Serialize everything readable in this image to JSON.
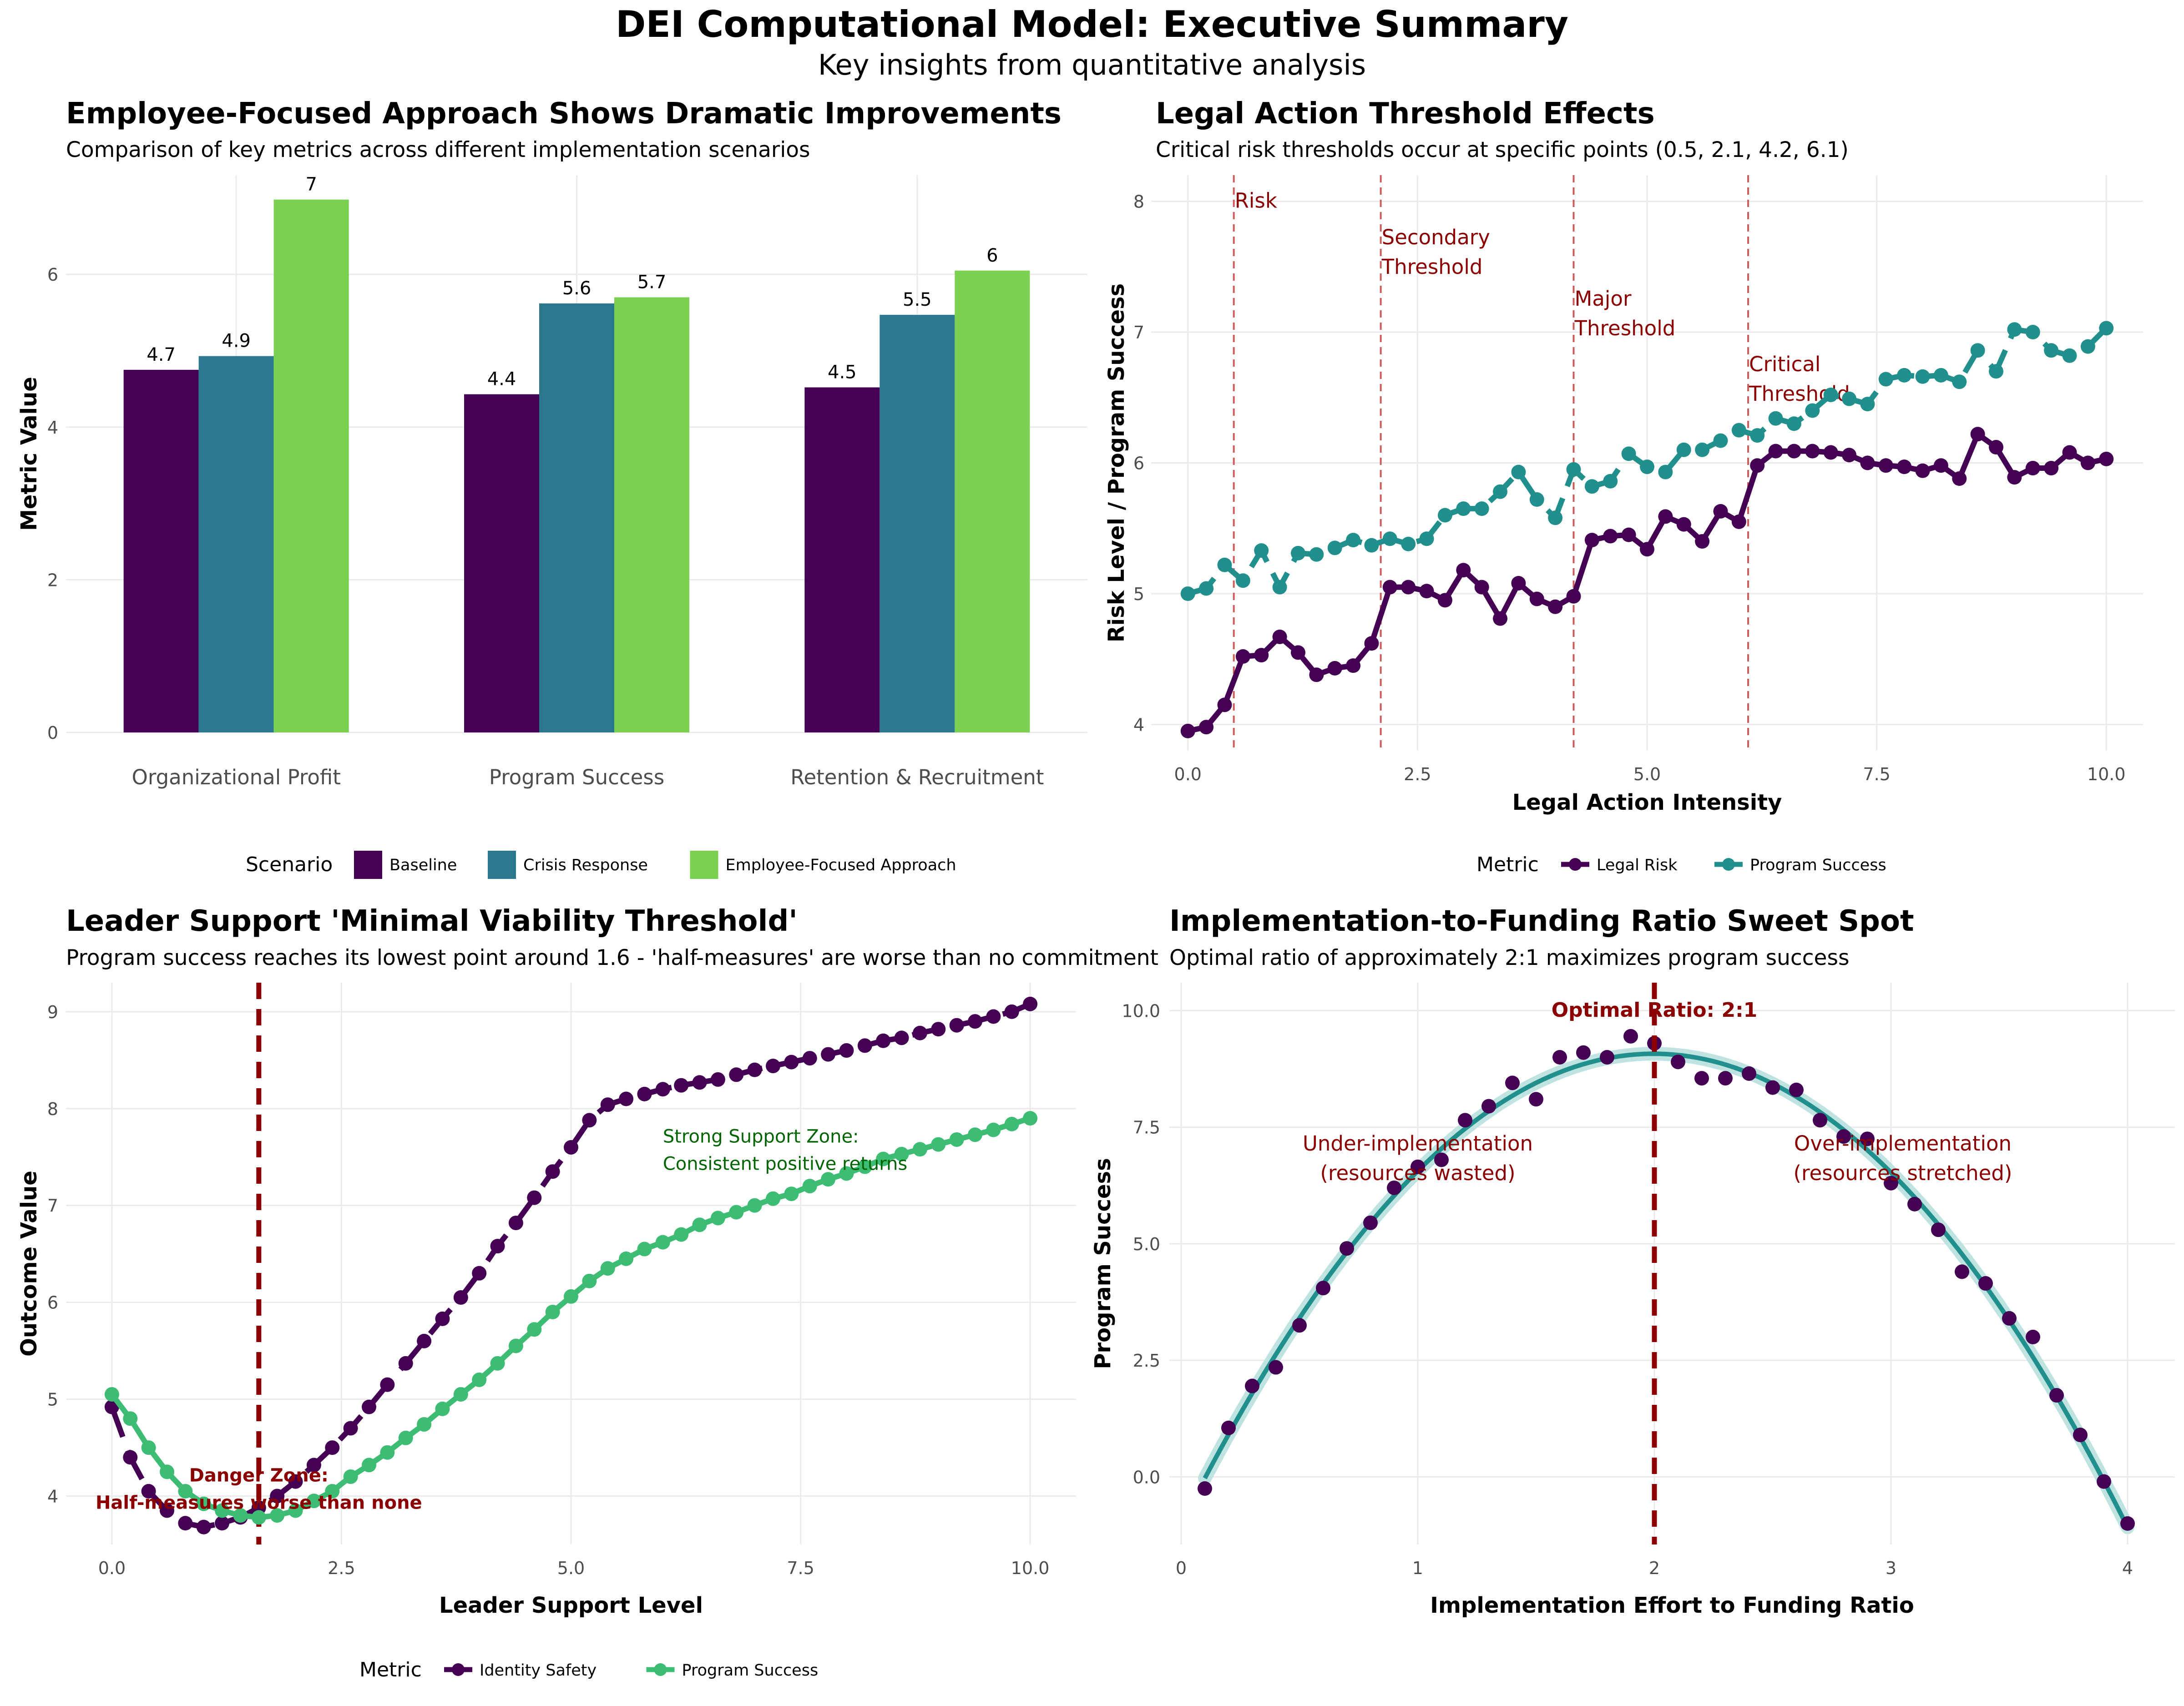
{
  "title": "DEI Computational Model: Executive Summary",
  "subtitle": "Key insights from quantitative analysis",
  "colors": {
    "baseline": "#440154",
    "crisis": "#2A788E",
    "employee": "#7AD151",
    "legal_risk": "#440154",
    "program_success_teal": "#21908C",
    "identity_safety": "#440154",
    "program_success_green": "#3DBC74",
    "annotation_red": "#8B0000",
    "threshold_red": "#CD5C5C",
    "zone_green": "#006400"
  },
  "chart_data": [
    {
      "type": "bar",
      "title": "Employee-Focused Approach Shows Dramatic Improvements",
      "subtitle": "Comparison of key metrics across different implementation scenarios",
      "xlabel": "",
      "ylabel": "Metric Value",
      "ylim": [
        0,
        7.3
      ],
      "yticks": [
        0,
        2,
        4,
        6
      ],
      "categories": [
        "Organizational Profit",
        "Program Success",
        "Retention & Recruitment"
      ],
      "series": [
        {
          "name": "Baseline",
          "values": [
            4.75,
            4.43,
            4.52
          ],
          "labels": [
            "4.7",
            "4.4",
            "4.5"
          ]
        },
        {
          "name": "Crisis Response",
          "values": [
            4.93,
            5.62,
            5.47
          ],
          "labels": [
            "4.9",
            "5.6",
            "5.5"
          ]
        },
        {
          "name": "Employee-Focused Approach",
          "values": [
            6.98,
            5.7,
            6.05
          ],
          "labels": [
            "7",
            "5.7",
            "6"
          ]
        }
      ],
      "legend_title": "Scenario",
      "legend_position": "bottom",
      "grid": true
    },
    {
      "type": "line",
      "title": "Legal Action Threshold Effects",
      "subtitle": "Critical risk thresholds occur at specific points (0.5, 2.1, 4.2, 6.1)",
      "xlabel": "Legal Action Intensity",
      "ylabel": "Risk Level / Program Success",
      "xlim": [
        -0.4,
        10.4
      ],
      "ylim": [
        3.8,
        8.2
      ],
      "xticks": [
        "0.0",
        "2.5",
        "5.0",
        "7.5",
        "10.0"
      ],
      "yticks": [
        4,
        5,
        6,
        7,
        8
      ],
      "x": [
        0.0,
        0.2,
        0.4,
        0.6,
        0.8,
        1.0,
        1.2,
        1.4,
        1.6,
        1.8,
        2.0,
        2.2,
        2.4,
        2.6,
        2.8,
        3.0,
        3.2,
        3.4,
        3.6,
        3.8,
        4.0,
        4.2,
        4.4,
        4.6,
        4.8,
        5.0,
        5.2,
        5.4,
        5.6,
        5.8,
        6.0,
        6.2,
        6.4,
        6.6,
        6.8,
        7.0,
        7.2,
        7.4,
        7.6,
        7.8,
        8.0,
        8.2,
        8.4,
        8.6,
        8.8,
        9.0,
        9.2,
        9.4,
        9.6,
        9.8,
        10.0
      ],
      "series": [
        {
          "name": "Legal Risk",
          "values": [
            3.95,
            3.98,
            4.15,
            4.52,
            4.53,
            4.67,
            4.55,
            4.38,
            4.43,
            4.45,
            4.62,
            5.05,
            5.05,
            5.02,
            4.95,
            5.18,
            5.05,
            4.81,
            5.08,
            4.96,
            4.9,
            4.98,
            5.41,
            5.44,
            5.45,
            5.34,
            5.59,
            5.53,
            5.4,
            5.63,
            5.55,
            5.98,
            6.09,
            6.09,
            6.09,
            6.08,
            6.06,
            6.0,
            5.98,
            5.97,
            5.94,
            5.98,
            5.88,
            6.22,
            6.12,
            5.89,
            5.96,
            5.96,
            6.08,
            6.0,
            6.03
          ]
        },
        {
          "name": "Program Success",
          "values": [
            5.0,
            5.04,
            5.22,
            5.1,
            5.33,
            5.05,
            5.31,
            5.3,
            5.35,
            5.41,
            5.37,
            5.42,
            5.38,
            5.42,
            5.6,
            5.65,
            5.65,
            5.78,
            5.93,
            5.72,
            5.58,
            5.95,
            5.82,
            5.86,
            6.07,
            5.97,
            5.93,
            6.1,
            6.1,
            6.17,
            6.25,
            6.21,
            6.34,
            6.3,
            6.4,
            6.52,
            6.49,
            6.45,
            6.64,
            6.67,
            6.66,
            6.67,
            6.62,
            6.86,
            6.7,
            7.02,
            7.0,
            6.86,
            6.82,
            6.89,
            7.03
          ]
        }
      ],
      "thresholds": [
        {
          "x": 0.5,
          "label": [
            "Risk"
          ],
          "y": 8.0
        },
        {
          "x": 2.1,
          "label": [
            "Secondary",
            "Threshold"
          ],
          "y": 7.72
        },
        {
          "x": 4.2,
          "label": [
            "Major",
            "Threshold"
          ],
          "y": 7.25
        },
        {
          "x": 6.1,
          "label": [
            "Critical",
            "Threshold"
          ],
          "y": 6.75
        }
      ],
      "legend_title": "Metric",
      "legend_position": "bottom",
      "grid": true
    },
    {
      "type": "line",
      "title": "Leader Support 'Minimal Viability Threshold'",
      "subtitle": "Program success reaches its lowest point around 1.6 - 'half-measures' are worse than no commitment",
      "xlabel": "Leader Support Level",
      "ylabel": "Outcome Value",
      "xlim": [
        -0.5,
        10.5
      ],
      "ylim": [
        3.5,
        9.3
      ],
      "xticks": [
        "0.0",
        "2.5",
        "5.0",
        "7.5",
        "10.0"
      ],
      "yticks": [
        4,
        5,
        6,
        7,
        8,
        9
      ],
      "x": [
        0.0,
        0.2,
        0.4,
        0.6,
        0.8,
        1.0,
        1.2,
        1.4,
        1.6,
        1.8,
        2.0,
        2.2,
        2.4,
        2.6,
        2.8,
        3.0,
        3.2,
        3.4,
        3.6,
        3.8,
        4.0,
        4.2,
        4.4,
        4.6,
        4.8,
        5.0,
        5.2,
        5.4,
        5.6,
        5.8,
        6.0,
        6.2,
        6.4,
        6.6,
        6.8,
        7.0,
        7.2,
        7.4,
        7.6,
        7.8,
        8.0,
        8.2,
        8.4,
        8.6,
        8.8,
        9.0,
        9.2,
        9.4,
        9.6,
        9.8,
        10.0
      ],
      "series": [
        {
          "name": "Identity Safety",
          "values": [
            4.92,
            4.4,
            4.05,
            3.85,
            3.72,
            3.68,
            3.72,
            3.78,
            3.88,
            4.0,
            4.15,
            4.32,
            4.5,
            4.7,
            4.92,
            5.15,
            5.37,
            5.6,
            5.83,
            6.05,
            6.3,
            6.58,
            6.82,
            7.08,
            7.35,
            7.6,
            7.88,
            8.04,
            8.1,
            8.15,
            8.2,
            8.24,
            8.27,
            8.3,
            8.35,
            8.4,
            8.44,
            8.48,
            8.52,
            8.56,
            8.6,
            8.65,
            8.7,
            8.73,
            8.78,
            8.82,
            8.86,
            8.9,
            8.95,
            9.0,
            9.08
          ]
        },
        {
          "name": "Program Success",
          "values": [
            5.05,
            4.8,
            4.5,
            4.25,
            4.05,
            3.92,
            3.85,
            3.8,
            3.78,
            3.8,
            3.85,
            3.95,
            4.05,
            4.2,
            4.32,
            4.45,
            4.6,
            4.74,
            4.9,
            5.05,
            5.2,
            5.37,
            5.55,
            5.72,
            5.9,
            6.06,
            6.22,
            6.35,
            6.45,
            6.55,
            6.62,
            6.7,
            6.8,
            6.87,
            6.93,
            7.0,
            7.07,
            7.12,
            7.2,
            7.27,
            7.33,
            7.4,
            7.48,
            7.53,
            7.58,
            7.63,
            7.68,
            7.73,
            7.78,
            7.84,
            7.9
          ]
        }
      ],
      "threshold_x": 1.6,
      "annotations": [
        {
          "x": 1.6,
          "y": 4.15,
          "lines": [
            "Danger Zone:",
            "Half-measures worse than none"
          ]
        },
        {
          "x": 6.0,
          "y": 7.65,
          "lines": [
            "Strong Support Zone:",
            "Consistent positive returns"
          ]
        }
      ],
      "legend_title": "Metric",
      "legend_position": "bottom",
      "grid": true
    },
    {
      "type": "scatter",
      "title": "Implementation-to-Funding Ratio Sweet Spot",
      "subtitle": "Optimal ratio of approximately 2:1 maximizes program success",
      "xlabel": "Implementation Effort to Funding Ratio",
      "ylabel": "Program Success",
      "xlim": [
        -0.05,
        4.2
      ],
      "ylim": [
        -1.45,
        10.6
      ],
      "xticks": [
        "0",
        "1",
        "2",
        "3",
        "4"
      ],
      "yticks": [
        "0.0",
        "2.5",
        "5.0",
        "7.5",
        "10.0"
      ],
      "points_x": [
        0.1,
        0.2,
        0.3,
        0.4,
        0.5,
        0.6,
        0.7,
        0.8,
        0.9,
        1.0,
        1.1,
        1.2,
        1.3,
        1.4,
        1.5,
        1.6,
        1.7,
        1.8,
        1.9,
        2.0,
        2.1,
        2.2,
        2.3,
        2.4,
        2.5,
        2.6,
        2.7,
        2.8,
        2.9,
        3.0,
        3.1,
        3.2,
        3.3,
        3.4,
        3.5,
        3.6,
        3.7,
        3.8,
        3.9,
        4.0
      ],
      "points_y": [
        -0.25,
        1.05,
        1.95,
        2.35,
        3.25,
        4.05,
        4.9,
        5.45,
        6.2,
        6.65,
        6.8,
        7.65,
        7.95,
        8.45,
        8.1,
        9.0,
        9.1,
        9.0,
        9.45,
        9.3,
        8.9,
        8.55,
        8.55,
        8.65,
        8.35,
        8.3,
        7.65,
        7.3,
        7.25,
        6.3,
        5.85,
        5.3,
        4.4,
        4.15,
        3.4,
        3.0,
        1.75,
        0.9,
        -0.1,
        -1.0
      ],
      "fit": "quadratic",
      "threshold_x": 2.0,
      "threshold_label": "Optimal Ratio: 2:1",
      "annotations": [
        {
          "x": 1.0,
          "y": 7.0,
          "lines": [
            "Under-implementation",
            "(resources wasted)"
          ]
        },
        {
          "x": 3.05,
          "y": 7.0,
          "lines": [
            "Over-implementation",
            "(resources stretched)"
          ]
        }
      ],
      "grid": true
    }
  ]
}
